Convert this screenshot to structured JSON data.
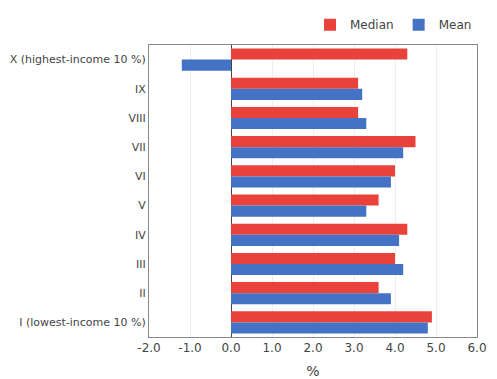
{
  "chart_data": {
    "type": "bar",
    "orientation": "horizontal",
    "categories": [
      "I (lowest-income 10 %)",
      "II",
      "III",
      "IV",
      "V",
      "VI",
      "VII",
      "VIII",
      "IX",
      "X (highest-income 10 %)"
    ],
    "series": [
      {
        "name": "Median",
        "color": "#e8423b",
        "values": [
          4.9,
          3.6,
          4.0,
          4.3,
          3.6,
          4.0,
          4.5,
          3.1,
          3.1,
          4.3
        ]
      },
      {
        "name": "Mean",
        "color": "#4472c4",
        "values": [
          4.8,
          3.9,
          4.2,
          4.1,
          3.3,
          3.9,
          4.2,
          3.3,
          3.2,
          -1.2
        ]
      }
    ],
    "xlabel": "%",
    "xlim": [
      -2.0,
      6.0
    ],
    "xticks": [
      {
        "value": -2.0,
        "label": "-2.0"
      },
      {
        "value": -1.0,
        "label": "-1.0"
      },
      {
        "value": 0.0,
        "label": "0.0"
      },
      {
        "value": 1.0,
        "label": "1.0"
      },
      {
        "value": 2.0,
        "label": "2.0"
      },
      {
        "value": 3.0,
        "label": "3.0"
      },
      {
        "value": 4.0,
        "label": "4.0"
      },
      {
        "value": 5.0,
        "label": "5.0"
      },
      {
        "value": 6.0,
        "label": "6.0"
      }
    ],
    "grid": true,
    "legend": "upper right"
  }
}
